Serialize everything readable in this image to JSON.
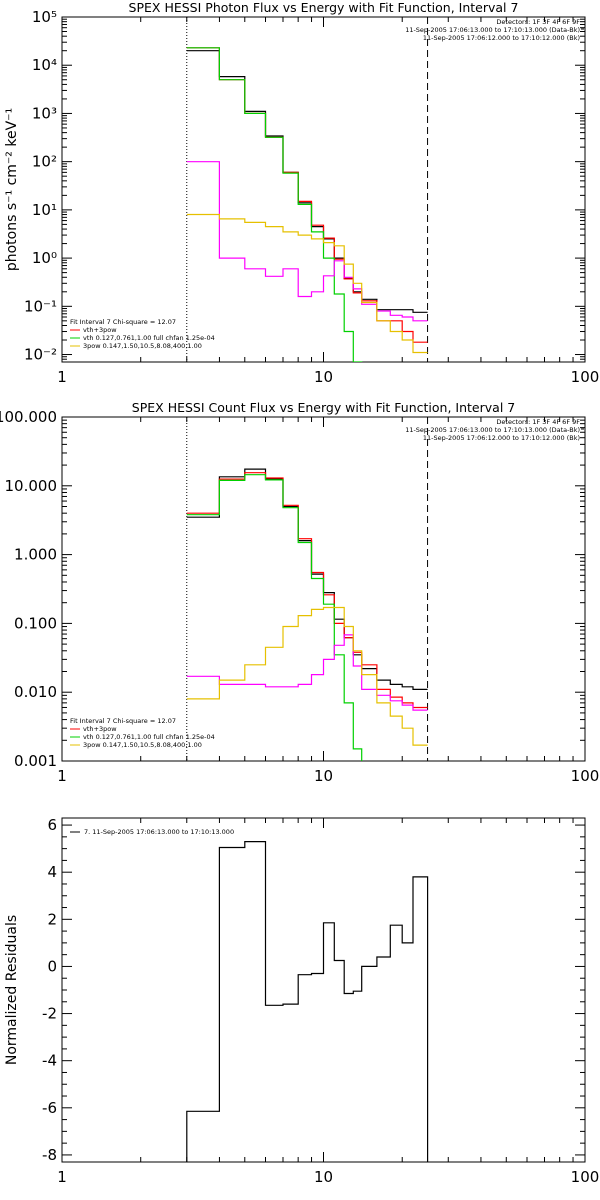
{
  "chart_data": [
    {
      "type": "line",
      "title": "SPEX HESSI Photon Flux vs Energy with Fit Function, Interval 7",
      "ylabel": "photons s⁻¹ cm⁻² keV⁻¹",
      "xlabel": "",
      "xscale": "log",
      "yscale": "log",
      "xlim": [
        1,
        100
      ],
      "ylim": [
        0.007,
        100000
      ],
      "x_ticks": [
        {
          "value": 1,
          "label": "1"
        },
        {
          "value": 10,
          "label": "10"
        },
        {
          "value": 100,
          "label": "100"
        }
      ],
      "y_ticks": [
        {
          "value": 0.01,
          "label": "10⁻²"
        },
        {
          "value": 0.1,
          "label": "10⁻¹"
        },
        {
          "value": 1,
          "label": "10⁰"
        },
        {
          "value": 10,
          "label": "10¹"
        },
        {
          "value": 100,
          "label": "10²"
        },
        {
          "value": 1000,
          "label": "10³"
        },
        {
          "value": 10000,
          "label": "10⁴"
        },
        {
          "value": 100000,
          "label": "10⁵"
        }
      ],
      "vlines": [
        {
          "x": 3,
          "style": "dotted"
        },
        {
          "x": 25,
          "style": "dashed"
        }
      ],
      "info_lines": [
        "Detectors: 1F 3F 4F 6F 9F",
        "11-Sep-2005 17:06:13.000 to 17:10:13.000 (Data-Bk)",
        "11-Sep-2005 17:06:12.000 to 17:10:12.000 (Bk)"
      ],
      "legend": [
        "Fit Interval  7    Chi-square = 12.07",
        "vth+3pow",
        "vth 0.127,0.761,1.00  full chfan 1.25e-04",
        "3pow 0.147,1.50,10.5,8.08,400,1.00"
      ],
      "bin_edges": [
        3,
        4,
        5,
        6,
        7,
        8,
        9,
        10,
        11,
        12,
        13,
        14,
        16,
        18,
        20,
        22,
        25
      ],
      "series": [
        {
          "color": "#000000",
          "style": "step",
          "values": [
            20000,
            5800,
            1100,
            340,
            60,
            14,
            4.5,
            2.5,
            1.0,
            0.38,
            0.2,
            0.14,
            0.085,
            0.085,
            0.085,
            0.075
          ]
        },
        {
          "color": "#ff0000",
          "style": "step",
          "values": [
            23000,
            5000,
            1000,
            320,
            60,
            15,
            4.8,
            2.6,
            0.95,
            0.37,
            0.19,
            0.13,
            0.05,
            0.05,
            0.03,
            0.018
          ]
        },
        {
          "color": "#00d000",
          "style": "step",
          "values": [
            23000,
            5000,
            1000,
            320,
            58,
            13,
            3.5,
            1.0,
            0.18,
            0.03,
            0.007
          ]
        },
        {
          "color": "#ff00ff",
          "style": "step",
          "values": [
            100,
            1.0,
            0.6,
            0.42,
            0.6,
            0.16,
            0.2,
            0.43,
            0.88,
            0.4,
            0.23,
            0.11,
            0.08,
            0.065,
            0.06,
            0.05
          ]
        },
        {
          "color": "#e6c000",
          "style": "step",
          "values": [
            8,
            6.5,
            5.5,
            4.5,
            3.5,
            3.0,
            2.5,
            2.1,
            1.8,
            0.75,
            0.3,
            0.12,
            0.05,
            0.03,
            0.02,
            0.011
          ]
        }
      ]
    },
    {
      "type": "line",
      "title": "SPEX HESSI Count Flux vs Energy with Fit Function, Interval 7",
      "ylabel": "",
      "xlabel": "",
      "xscale": "log",
      "yscale": "log",
      "xlim": [
        1,
        100
      ],
      "ylim": [
        0.001,
        100
      ],
      "x_ticks": [
        {
          "value": 1,
          "label": "1"
        },
        {
          "value": 10,
          "label": "10"
        },
        {
          "value": 100,
          "label": "100"
        }
      ],
      "y_ticks": [
        {
          "value": 0.001,
          "label": "0.001"
        },
        {
          "value": 0.01,
          "label": "0.010"
        },
        {
          "value": 0.1,
          "label": "0.100"
        },
        {
          "value": 1,
          "label": "1.000"
        },
        {
          "value": 10,
          "label": "10.000"
        },
        {
          "value": 100,
          "label": "100.000"
        }
      ],
      "vlines": [
        {
          "x": 3,
          "style": "dotted"
        },
        {
          "x": 25,
          "style": "dashed"
        }
      ],
      "info_lines": [
        "Detectors: 1F 3F 4F 6F 9F",
        "11-Sep-2005 17:06:13.000 to 17:10:13.000 (Data-Bk)",
        "11-Sep-2005 17:06:12.000 to 17:10:12.000 (Bk)"
      ],
      "legend": [
        "Fit Interval  7    Chi-square = 12.07",
        "vth+3pow",
        "vth 0.127,0.761,1.00  full chfan 1.25e-04",
        "3pow 0.147,1.50,10.5,8.08,400,1.00"
      ],
      "bin_edges": [
        3,
        4,
        5,
        6,
        7,
        8,
        9,
        10,
        11,
        12,
        13,
        14,
        16,
        18,
        20,
        22,
        25
      ],
      "series": [
        {
          "color": "#000000",
          "style": "step",
          "values": [
            3.5,
            13.5,
            17.5,
            12.5,
            5.0,
            1.6,
            0.52,
            0.28,
            0.115,
            0.062,
            0.035,
            0.022,
            0.015,
            0.013,
            0.012,
            0.011
          ]
        },
        {
          "color": "#ff0000",
          "style": "step",
          "values": [
            4.0,
            12.5,
            15.5,
            13.0,
            5.2,
            1.7,
            0.55,
            0.26,
            0.1,
            0.062,
            0.038,
            0.025,
            0.011,
            0.0085,
            0.007,
            0.006
          ]
        },
        {
          "color": "#00d000",
          "style": "step",
          "values": [
            3.8,
            12.0,
            14.5,
            12.2,
            4.8,
            1.5,
            0.45,
            0.19,
            0.035,
            0.007,
            0.0015
          ]
        },
        {
          "color": "#ff00ff",
          "style": "step",
          "values": [
            0.017,
            0.013,
            0.013,
            0.012,
            0.012,
            0.013,
            0.018,
            0.03,
            0.048,
            0.068,
            0.024,
            0.011,
            0.009,
            0.0075,
            0.0065,
            0.0055
          ]
        },
        {
          "color": "#e6c000",
          "style": "step",
          "values": [
            0.008,
            0.015,
            0.025,
            0.045,
            0.09,
            0.13,
            0.16,
            0.17,
            0.17,
            0.09,
            0.04,
            0.018,
            0.007,
            0.0045,
            0.003,
            0.0017
          ]
        }
      ]
    },
    {
      "type": "line",
      "title": "",
      "ylabel": "Normalized Residuals",
      "xlabel": "",
      "xscale": "log",
      "yscale": "linear",
      "xlim": [
        1,
        100
      ],
      "ylim": [
        -8.3,
        6.3
      ],
      "x_ticks": [
        {
          "value": 1,
          "label": "1"
        },
        {
          "value": 10,
          "label": "10"
        },
        {
          "value": 100,
          "label": "100"
        }
      ],
      "y_ticks": [
        {
          "value": -8,
          "label": "-8"
        },
        {
          "value": -6,
          "label": "-6"
        },
        {
          "value": -4,
          "label": "-4"
        },
        {
          "value": -2,
          "label": "-2"
        },
        {
          "value": 0,
          "label": "0"
        },
        {
          "value": 2,
          "label": "2"
        },
        {
          "value": 4,
          "label": "4"
        },
        {
          "value": 6,
          "label": "6"
        }
      ],
      "vlines": [],
      "info_lines": [],
      "legend": [
        "7. 11-Sep-2005 17:06:13.000 to 17:10:13.000"
      ],
      "bin_edges": [
        3,
        4,
        5,
        6,
        7,
        8,
        9,
        10,
        11,
        12,
        13,
        14,
        16,
        18,
        20,
        22,
        25
      ],
      "series": [
        {
          "color": "#000000",
          "style": "step",
          "start_from": -8.3,
          "end_at": -8.3,
          "values": [
            -6.15,
            5.05,
            5.3,
            -1.65,
            -1.6,
            -0.35,
            -0.3,
            1.85,
            0.25,
            -1.15,
            -1.05,
            0.0,
            0.4,
            1.75,
            1.0,
            3.8
          ]
        }
      ]
    }
  ]
}
